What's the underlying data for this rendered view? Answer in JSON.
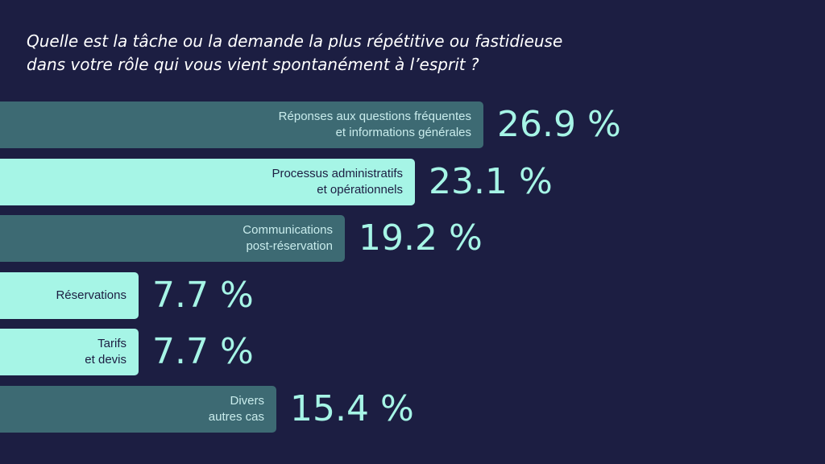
{
  "chart_data": {
    "type": "bar",
    "orientation": "horizontal",
    "title_lines": [
      "Quelle est la tâche ou la demande la plus répétitive ou fastidieuse",
      "dans votre rôle qui vous vient spontanément à l’esprit ?"
    ],
    "categories": [
      [
        "Réponses aux questions fréquentes",
        "et informations générales"
      ],
      [
        "Processus administratifs",
        "et opérationnels"
      ],
      [
        "Communications",
        "post-réservation"
      ],
      [
        "Réservations"
      ],
      [
        "Tarifs",
        "et devis"
      ],
      [
        "Divers",
        "autres cas"
      ]
    ],
    "values": [
      26.9,
      23.1,
      19.2,
      7.7,
      7.7,
      15.4
    ],
    "value_labels": [
      "26.9 %",
      "23.1 %",
      "19.2 %",
      "7.7 %",
      "7.7 %",
      "15.4 %"
    ],
    "xlim": [
      0,
      45
    ],
    "grid": false,
    "legend": "none",
    "colors": {
      "background": "#1c1e42",
      "bar_dark": "#3d6a73",
      "bar_light": "#a6f5e6",
      "label_on_dark": "#c9ecec",
      "label_on_light": "#1c1e42",
      "value_text": "#a6f5e6",
      "title_text": "#ffffff"
    },
    "bar_styles": [
      "dark",
      "light",
      "dark",
      "light",
      "light",
      "dark"
    ]
  }
}
